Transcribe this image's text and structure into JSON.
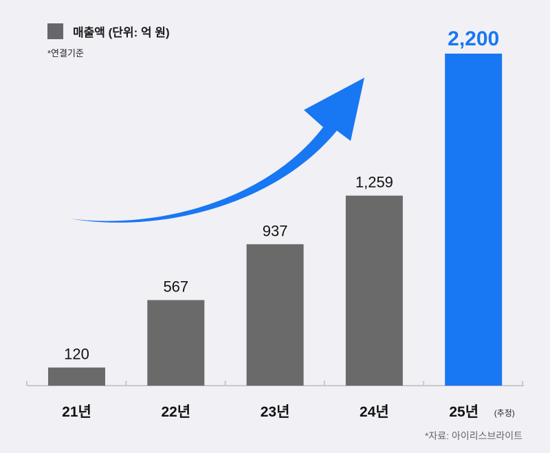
{
  "chart_data": {
    "type": "bar",
    "categories": [
      "21년",
      "22년",
      "23년",
      "24년",
      "25년"
    ],
    "category_notes": [
      "",
      "",
      "",
      "",
      "(추정)"
    ],
    "values": [
      120,
      567,
      937,
      1259,
      2200
    ],
    "value_labels": [
      "120",
      "567",
      "937",
      "1,259",
      "2,200"
    ],
    "series": [
      {
        "name": "매출액 (단위: 억 원)",
        "values": [
          120,
          567,
          937,
          1259,
          2200
        ]
      }
    ],
    "ylim": [
      0,
      2200
    ],
    "grid": false,
    "legend": "top-left",
    "note": "*연결기준",
    "source": "*자료: 아이리스브라이트",
    "colors": {
      "actual": "#6a6a6a",
      "estimate": "#1877f2",
      "arrow": "#1877f2",
      "axis": "#c8c7cc",
      "background": "#f1f0f5"
    },
    "annotation": "upward-growth-arrow"
  }
}
